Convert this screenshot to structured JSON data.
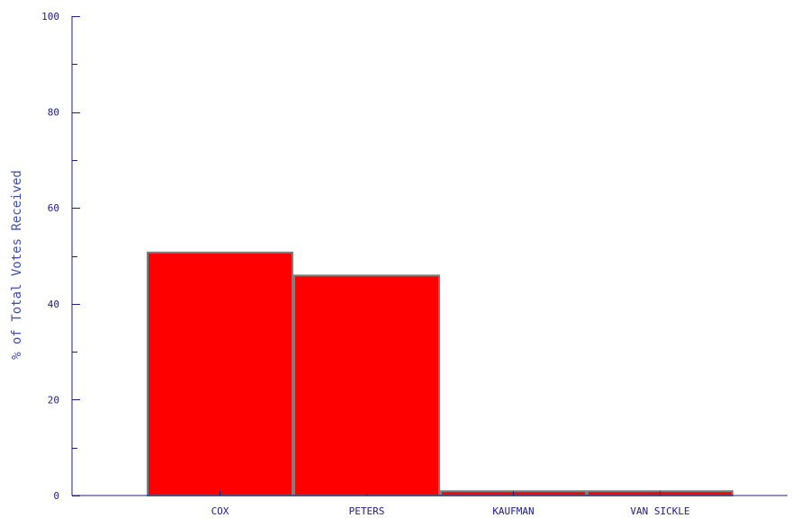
{
  "chart_data": {
    "type": "bar",
    "title": "",
    "xlabel": "",
    "ylabel": "% of Total Votes Received",
    "categories": [
      "COX",
      "PETERS",
      "KAUFMAN",
      "VAN SICKLE"
    ],
    "values": [
      50.7,
      45.9,
      0.9,
      0.9
    ],
    "ylim": [
      0,
      100
    ],
    "yticks": [
      0,
      20,
      40,
      60,
      80,
      100
    ],
    "ytick_labels": [
      "0",
      "20",
      "40",
      "60",
      "80",
      "100"
    ],
    "minor_tick_step": 10,
    "grid": false,
    "legend": "none"
  },
  "colors": {
    "bar_fill": "#ff0000",
    "bar_stroke": "#7f7f7f",
    "axis": "#202080",
    "label_text": "#202080",
    "axis_title": "#4050b0",
    "background": "#ffffff"
  }
}
